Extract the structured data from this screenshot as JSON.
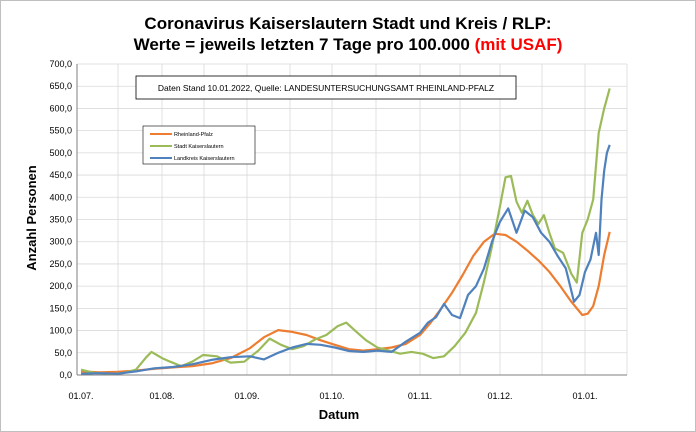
{
  "chart_data": {
    "type": "line",
    "title_line1": "Coronavirus Kaiserslautern Stadt und Kreis / RLP:",
    "title_line2_prefix": "Werte = jeweils letzten 7 Tage pro 100.000 ",
    "title_line2_highlight": "(mit USAF)",
    "xlabel": "Datum",
    "ylabel": "Anzahl Personen",
    "ylim": [
      0,
      700
    ],
    "yticks": [
      "0,0",
      "50,0",
      "100,0",
      "150,0",
      "200,0",
      "250,0",
      "300,0",
      "350,0",
      "400,0",
      "450,0",
      "500,0",
      "550,0",
      "600,0",
      "650,0",
      "700,0"
    ],
    "xticks": [
      "01.07.",
      "01.08.",
      "01.09.",
      "01.10.",
      "01.11.",
      "01.12.",
      "01.01."
    ],
    "annotation": "Daten Stand 10.01.2022, Quelle: LANDESUNTERSUCHUNGSAMT RHEINLAND-PFALZ",
    "grid": true,
    "legend_position": "upper-left",
    "x_start": "2021-07-01",
    "x_end": "2022-01-10",
    "series": [
      {
        "name": "Rheinland-Pfalz",
        "color": "#ed7d31",
        "points": [
          [
            "2021-07-01",
            8
          ],
          [
            "2021-07-08",
            6
          ],
          [
            "2021-07-15",
            7
          ],
          [
            "2021-07-22",
            10
          ],
          [
            "2021-07-29",
            14
          ],
          [
            "2021-08-05",
            17
          ],
          [
            "2021-08-12",
            20
          ],
          [
            "2021-08-19",
            26
          ],
          [
            "2021-08-26",
            38
          ],
          [
            "2021-09-02",
            60
          ],
          [
            "2021-09-07",
            85
          ],
          [
            "2021-09-12",
            101
          ],
          [
            "2021-09-17",
            97
          ],
          [
            "2021-09-22",
            90
          ],
          [
            "2021-09-27",
            78
          ],
          [
            "2021-10-02",
            68
          ],
          [
            "2021-10-07",
            58
          ],
          [
            "2021-10-12",
            55
          ],
          [
            "2021-10-17",
            58
          ],
          [
            "2021-10-22",
            62
          ],
          [
            "2021-10-27",
            70
          ],
          [
            "2021-11-01",
            90
          ],
          [
            "2021-11-05",
            118
          ],
          [
            "2021-11-09",
            150
          ],
          [
            "2021-11-13",
            185
          ],
          [
            "2021-11-17",
            225
          ],
          [
            "2021-11-21",
            268
          ],
          [
            "2021-11-25",
            300
          ],
          [
            "2021-11-29",
            318
          ],
          [
            "2021-12-03",
            315
          ],
          [
            "2021-12-07",
            300
          ],
          [
            "2021-12-11",
            280
          ],
          [
            "2021-12-15",
            258
          ],
          [
            "2021-12-19",
            232
          ],
          [
            "2021-12-23",
            200
          ],
          [
            "2021-12-27",
            165
          ],
          [
            "2021-12-31",
            135
          ],
          [
            "2022-01-02",
            138
          ],
          [
            "2022-01-04",
            155
          ],
          [
            "2022-01-06",
            200
          ],
          [
            "2022-01-08",
            270
          ],
          [
            "2022-01-10",
            322
          ]
        ]
      },
      {
        "name": "Stadt Kaiserslautern",
        "color": "#9bbb59",
        "points": [
          [
            "2021-07-01",
            12
          ],
          [
            "2021-07-06",
            5
          ],
          [
            "2021-07-12",
            3
          ],
          [
            "2021-07-17",
            4
          ],
          [
            "2021-07-22",
            12
          ],
          [
            "2021-07-26",
            40
          ],
          [
            "2021-07-28",
            52
          ],
          [
            "2021-08-01",
            38
          ],
          [
            "2021-08-04",
            30
          ],
          [
            "2021-08-08",
            20
          ],
          [
            "2021-08-12",
            30
          ],
          [
            "2021-08-16",
            45
          ],
          [
            "2021-08-21",
            42
          ],
          [
            "2021-08-26",
            28
          ],
          [
            "2021-08-31",
            30
          ],
          [
            "2021-09-05",
            55
          ],
          [
            "2021-09-09",
            82
          ],
          [
            "2021-09-13",
            68
          ],
          [
            "2021-09-17",
            58
          ],
          [
            "2021-09-21",
            65
          ],
          [
            "2021-09-25",
            80
          ],
          [
            "2021-09-29",
            90
          ],
          [
            "2021-10-03",
            110
          ],
          [
            "2021-10-06",
            118
          ],
          [
            "2021-10-10",
            95
          ],
          [
            "2021-10-13",
            78
          ],
          [
            "2021-10-17",
            62
          ],
          [
            "2021-10-21",
            55
          ],
          [
            "2021-10-25",
            48
          ],
          [
            "2021-10-29",
            52
          ],
          [
            "2021-11-02",
            48
          ],
          [
            "2021-11-06",
            38
          ],
          [
            "2021-11-10",
            42
          ],
          [
            "2021-11-14",
            65
          ],
          [
            "2021-11-18",
            95
          ],
          [
            "2021-11-22",
            140
          ],
          [
            "2021-11-25",
            210
          ],
          [
            "2021-11-28",
            290
          ],
          [
            "2021-12-01",
            380
          ],
          [
            "2021-12-03",
            445
          ],
          [
            "2021-12-05",
            448
          ],
          [
            "2021-12-07",
            390
          ],
          [
            "2021-12-09",
            365
          ],
          [
            "2021-12-11",
            392
          ],
          [
            "2021-12-13",
            360
          ],
          [
            "2021-12-15",
            340
          ],
          [
            "2021-12-17",
            360
          ],
          [
            "2021-12-19",
            320
          ],
          [
            "2021-12-21",
            285
          ],
          [
            "2021-12-24",
            275
          ],
          [
            "2021-12-27",
            228
          ],
          [
            "2021-12-29",
            208
          ],
          [
            "2021-12-31",
            320
          ],
          [
            "2022-01-02",
            350
          ],
          [
            "2022-01-04",
            395
          ],
          [
            "2022-01-06",
            545
          ],
          [
            "2022-01-08",
            600
          ],
          [
            "2022-01-10",
            645
          ]
        ]
      },
      {
        "name": "Landkreis Kaiserslautern",
        "color": "#4f81bd",
        "points": [
          [
            "2021-07-01",
            3
          ],
          [
            "2021-07-08",
            4
          ],
          [
            "2021-07-15",
            3
          ],
          [
            "2021-07-22",
            8
          ],
          [
            "2021-07-29",
            15
          ],
          [
            "2021-08-05",
            18
          ],
          [
            "2021-08-12",
            24
          ],
          [
            "2021-08-19",
            34
          ],
          [
            "2021-08-26",
            40
          ],
          [
            "2021-09-02",
            42
          ],
          [
            "2021-09-07",
            35
          ],
          [
            "2021-09-12",
            50
          ],
          [
            "2021-09-17",
            62
          ],
          [
            "2021-09-22",
            70
          ],
          [
            "2021-09-27",
            68
          ],
          [
            "2021-10-02",
            62
          ],
          [
            "2021-10-07",
            54
          ],
          [
            "2021-10-12",
            52
          ],
          [
            "2021-10-17",
            55
          ],
          [
            "2021-10-22",
            52
          ],
          [
            "2021-10-27",
            75
          ],
          [
            "2021-11-01",
            95
          ],
          [
            "2021-11-04",
            118
          ],
          [
            "2021-11-07",
            130
          ],
          [
            "2021-11-10",
            160
          ],
          [
            "2021-11-13",
            135
          ],
          [
            "2021-11-16",
            128
          ],
          [
            "2021-11-19",
            180
          ],
          [
            "2021-11-22",
            200
          ],
          [
            "2021-11-25",
            240
          ],
          [
            "2021-11-28",
            300
          ],
          [
            "2021-12-01",
            345
          ],
          [
            "2021-12-04",
            375
          ],
          [
            "2021-12-07",
            320
          ],
          [
            "2021-12-10",
            370
          ],
          [
            "2021-12-13",
            355
          ],
          [
            "2021-12-16",
            320
          ],
          [
            "2021-12-19",
            300
          ],
          [
            "2021-12-22",
            268
          ],
          [
            "2021-12-25",
            240
          ],
          [
            "2021-12-28",
            165
          ],
          [
            "2021-12-30",
            180
          ],
          [
            "2022-01-01",
            232
          ],
          [
            "2022-01-03",
            260
          ],
          [
            "2022-01-05",
            320
          ],
          [
            "2022-01-06",
            270
          ],
          [
            "2022-01-07",
            395
          ],
          [
            "2022-01-08",
            460
          ],
          [
            "2022-01-09",
            500
          ],
          [
            "2022-01-10",
            518
          ]
        ]
      }
    ]
  }
}
